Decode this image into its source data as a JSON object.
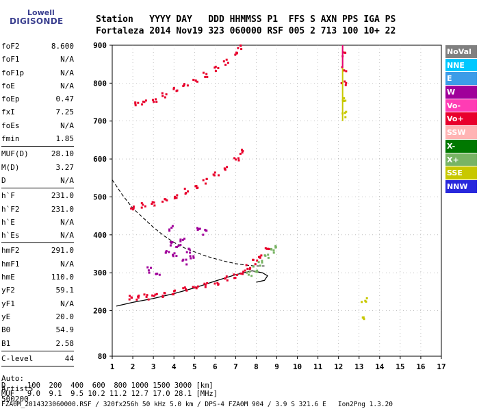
{
  "logo": {
    "line1": "Lowell",
    "line2": "DIGISONDE"
  },
  "header": {
    "line1": "Station   YYYY DAY   DDD HHMMSS P1  FFS S AXN PPS IGA PS",
    "line2": "Fortaleza 2014 Nov19 323 060000 RSF 005 2 713 100 10+ 22"
  },
  "params": [
    {
      "k": "foF2",
      "v": "8.600"
    },
    {
      "k": "foF1",
      "v": "N/A"
    },
    {
      "k": "foF1p",
      "v": "N/A"
    },
    {
      "k": "foE",
      "v": "N/A"
    },
    {
      "k": "foEp",
      "v": "0.47"
    },
    {
      "k": "fxI",
      "v": "7.25"
    },
    {
      "k": "foEs",
      "v": "N/A"
    },
    {
      "k": "fmin",
      "v": "1.85"
    },
    {
      "sep": true
    },
    {
      "k": "MUF(D)",
      "v": "28.10"
    },
    {
      "k": "M(D)",
      "v": "3.27"
    },
    {
      "k": "D",
      "v": "N/A"
    },
    {
      "sep": true
    },
    {
      "k": "h`F",
      "v": "231.0"
    },
    {
      "k": "h`F2",
      "v": "231.0"
    },
    {
      "k": "h`E",
      "v": "N/A"
    },
    {
      "k": "h`Es",
      "v": "N/A"
    },
    {
      "sep": true
    },
    {
      "k": "hmF2",
      "v": "291.0"
    },
    {
      "k": "hmF1",
      "v": "N/A"
    },
    {
      "k": "hmE",
      "v": "110.0"
    },
    {
      "k": "yF2",
      "v": "59.1"
    },
    {
      "k": "yF1",
      "v": "N/A"
    },
    {
      "k": "yE",
      "v": "20.0"
    },
    {
      "k": "B0",
      "v": "54.9"
    },
    {
      "k": "B1",
      "v": "2.58"
    },
    {
      "sep": true
    },
    {
      "k": "C-level",
      "v": "44"
    },
    {
      "sep": true
    }
  ],
  "auto": {
    "line1": "Auto:",
    "line2": "Artist5",
    "line3": "500200"
  },
  "footer": {
    "d_line": "D     100  200  400  600  800 1000 1500 3000 [km]",
    "muf_line": "MUF   9.0  9.1  9.5 10.2 11.2 12.7 17.0 28.1 [MHz]",
    "file_line": "FZA0M_2014323060000.RSF / 320fx256h 50 kHz 5.0 km / DPS-4 FZA0M 904 / 3.9 S 321.6 E   Ion2Png 1.3.20"
  },
  "legend": [
    {
      "label": "NoVal",
      "color": "#808080"
    },
    {
      "label": "NNE",
      "color": "#00c8ff"
    },
    {
      "label": "E",
      "color": "#3c9ce8"
    },
    {
      "label": "W",
      "color": "#a0009a"
    },
    {
      "label": "Vo-",
      "color": "#ff3cb4"
    },
    {
      "label": "Vo+",
      "color": "#e8002c"
    },
    {
      "label": "SSW",
      "color": "#ffb4b4"
    },
    {
      "label": "X-",
      "color": "#007800"
    },
    {
      "label": "X+",
      "color": "#78b464"
    },
    {
      "label": "SSE",
      "color": "#c8c800"
    },
    {
      "label": "NNW",
      "color": "#2828dc"
    }
  ],
  "chart_data": {
    "type": "scatter",
    "xlabel": "",
    "ylabel": "",
    "xlim": [
      1,
      17
    ],
    "ylim": [
      80,
      900
    ],
    "x_ticks": [
      "1",
      "2",
      "3",
      "4",
      "5",
      "6",
      "7",
      "8",
      "9",
      "10",
      "11",
      "12",
      "13",
      "14",
      "15",
      "16",
      "17"
    ],
    "y_ticks": [
      "80",
      "200",
      "300",
      "400",
      "500",
      "600",
      "700",
      "800",
      "900"
    ],
    "y_tick_values": [
      80,
      200,
      300,
      400,
      500,
      600,
      700,
      800,
      900
    ],
    "traces": [
      {
        "name": "O-trace F2",
        "color": "#e8002c",
        "points": [
          [
            1.9,
            238
          ],
          [
            2.2,
            236
          ],
          [
            2.6,
            239
          ],
          [
            3.0,
            242
          ],
          [
            3.5,
            246
          ],
          [
            4.0,
            252
          ],
          [
            4.5,
            258
          ],
          [
            5.0,
            264
          ],
          [
            5.5,
            270
          ],
          [
            6.0,
            278
          ],
          [
            6.5,
            286
          ],
          [
            7.0,
            296
          ],
          [
            7.3,
            305
          ],
          [
            7.6,
            318
          ],
          [
            7.9,
            330
          ],
          [
            8.2,
            342
          ],
          [
            8.5,
            360
          ]
        ]
      },
      {
        "name": "O-trace 2-hop",
        "color": "#e8002c",
        "points": [
          [
            2.0,
            476
          ],
          [
            2.5,
            480
          ],
          [
            3.0,
            486
          ],
          [
            3.5,
            496
          ],
          [
            4.0,
            506
          ],
          [
            4.5,
            518
          ],
          [
            5.0,
            530
          ],
          [
            5.5,
            545
          ],
          [
            6.0,
            560
          ],
          [
            6.5,
            580
          ],
          [
            7.0,
            600
          ],
          [
            7.3,
            620
          ]
        ]
      },
      {
        "name": "O-trace 3-hop",
        "color": "#e8002c",
        "points": [
          [
            2.1,
            745
          ],
          [
            2.5,
            750
          ],
          [
            3.0,
            760
          ],
          [
            3.5,
            772
          ],
          [
            4.0,
            785
          ],
          [
            4.5,
            798
          ],
          [
            5.0,
            810
          ],
          [
            5.5,
            825
          ],
          [
            6.0,
            840
          ],
          [
            6.5,
            858
          ],
          [
            7.0,
            878
          ],
          [
            7.2,
            895
          ]
        ]
      },
      {
        "name": "X-trace",
        "color": "#78b464",
        "points": [
          [
            7.6,
            300
          ],
          [
            7.9,
            312
          ],
          [
            8.2,
            328
          ],
          [
            8.5,
            345
          ],
          [
            8.8,
            362
          ],
          [
            9.0,
            368
          ]
        ]
      },
      {
        "name": "W echoes",
        "color": "#a0009a",
        "points": [
          [
            3.6,
            360
          ],
          [
            3.8,
            380
          ],
          [
            4.0,
            350
          ],
          [
            4.2,
            370
          ],
          [
            4.4,
            390
          ],
          [
            4.6,
            360
          ],
          [
            4.8,
            345
          ],
          [
            5.2,
            420
          ],
          [
            5.5,
            410
          ],
          [
            3.8,
            420
          ],
          [
            4.5,
            330
          ],
          [
            2.8,
            310
          ],
          [
            3.2,
            300
          ]
        ]
      },
      {
        "name": "Vo+ vertical",
        "color": "#e8002c",
        "points": [
          [
            12.2,
            800
          ],
          [
            12.2,
            840
          ],
          [
            12.2,
            880
          ]
        ]
      },
      {
        "name": "SSE vertical",
        "color": "#c8c800",
        "points": [
          [
            12.2,
            720
          ],
          [
            12.2,
            760
          ],
          [
            13.2,
            230
          ],
          [
            13.2,
            180
          ]
        ]
      }
    ],
    "profile_solid": [
      [
        1.2,
        212
      ],
      [
        2.0,
        222
      ],
      [
        3.0,
        232
      ],
      [
        4.0,
        245
      ],
      [
        5.0,
        260
      ],
      [
        6.0,
        278
      ],
      [
        7.0,
        295
      ],
      [
        7.8,
        305
      ],
      [
        8.3,
        300
      ],
      [
        8.55,
        292
      ],
      [
        8.4,
        280
      ],
      [
        8.0,
        275
      ]
    ],
    "profile_dashed": [
      [
        1.0,
        545
      ],
      [
        1.5,
        505
      ],
      [
        2.0,
        470
      ],
      [
        2.5,
        445
      ],
      [
        3.0,
        420
      ],
      [
        3.5,
        398
      ],
      [
        4.0,
        380
      ],
      [
        4.5,
        366
      ],
      [
        5.0,
        355
      ],
      [
        5.5,
        345
      ],
      [
        6.0,
        337
      ],
      [
        6.5,
        330
      ],
      [
        7.0,
        324
      ],
      [
        7.5,
        320
      ],
      [
        8.0,
        318
      ],
      [
        8.4,
        318
      ]
    ]
  }
}
